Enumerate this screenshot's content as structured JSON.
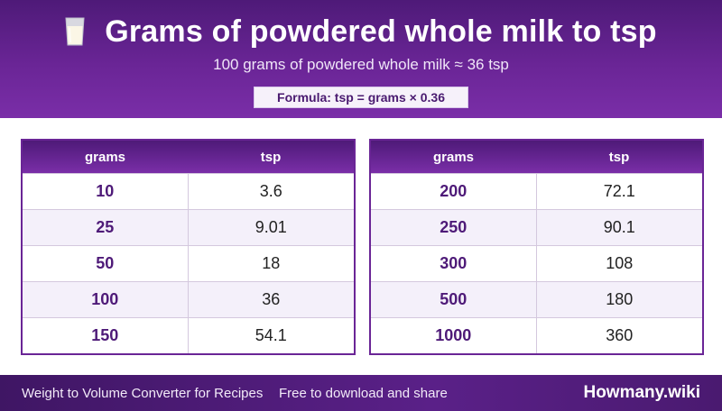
{
  "header": {
    "icon": "milk-glass-icon",
    "title": "Grams of powdered whole milk to tsp",
    "subtitle": "100 grams of powdered whole milk ≈ 36 tsp",
    "formula": "Formula: tsp = grams × 0.36"
  },
  "tables": {
    "left": {
      "col1": "grams",
      "col2": "tsp",
      "rows": [
        {
          "g": "10",
          "tsp": "3.6"
        },
        {
          "g": "25",
          "tsp": "9.01"
        },
        {
          "g": "50",
          "tsp": "18"
        },
        {
          "g": "100",
          "tsp": "36"
        },
        {
          "g": "150",
          "tsp": "54.1"
        }
      ]
    },
    "right": {
      "col1": "grams",
      "col2": "tsp",
      "rows": [
        {
          "g": "200",
          "tsp": "72.1"
        },
        {
          "g": "250",
          "tsp": "90.1"
        },
        {
          "g": "300",
          "tsp": "108"
        },
        {
          "g": "500",
          "tsp": "180"
        },
        {
          "g": "1000",
          "tsp": "360"
        }
      ]
    }
  },
  "footer": {
    "left": "Weight to Volume Converter for Recipes",
    "middle": "Free to download and share",
    "brand": "Howmany.wiki"
  },
  "colors": {
    "accent": "#6a2596",
    "accent_dark": "#4e1a78",
    "row_alt": "#f4f0fa"
  }
}
